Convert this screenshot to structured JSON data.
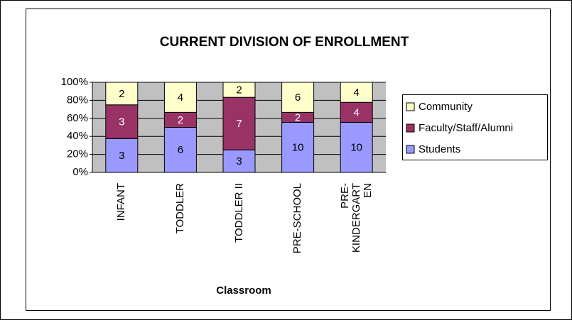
{
  "chart_data": {
    "type": "bar",
    "stacking": "percent",
    "title": "CURRENT DIVISION OF ENROLLMENT",
    "x_label": "Classroom",
    "categories": [
      "INFANT",
      "TODDLER",
      "TODDLER II",
      "PRE-SCHOOL",
      "PRE-KINDERGARTEN"
    ],
    "series": [
      {
        "name": "Students",
        "color": "#9999ff",
        "values": [
          3,
          6,
          3,
          10,
          10
        ]
      },
      {
        "name": "Faculty/Staff/Alumni",
        "color": "#993366",
        "values": [
          3,
          2,
          7,
          2,
          4
        ]
      },
      {
        "name": "Community",
        "color": "#ffffcc",
        "values": [
          2,
          4,
          2,
          6,
          4
        ]
      }
    ],
    "ylim": [
      0,
      100
    ],
    "yticks": [
      {
        "value": 0,
        "label": "0%"
      },
      {
        "value": 20,
        "label": "20%"
      },
      {
        "value": 40,
        "label": "40%"
      },
      {
        "value": 60,
        "label": "60%"
      },
      {
        "value": 80,
        "label": "80%"
      },
      {
        "value": 100,
        "label": "100%"
      }
    ],
    "grid": true,
    "plot_background": "#c0c0c0",
    "legend": "right"
  }
}
